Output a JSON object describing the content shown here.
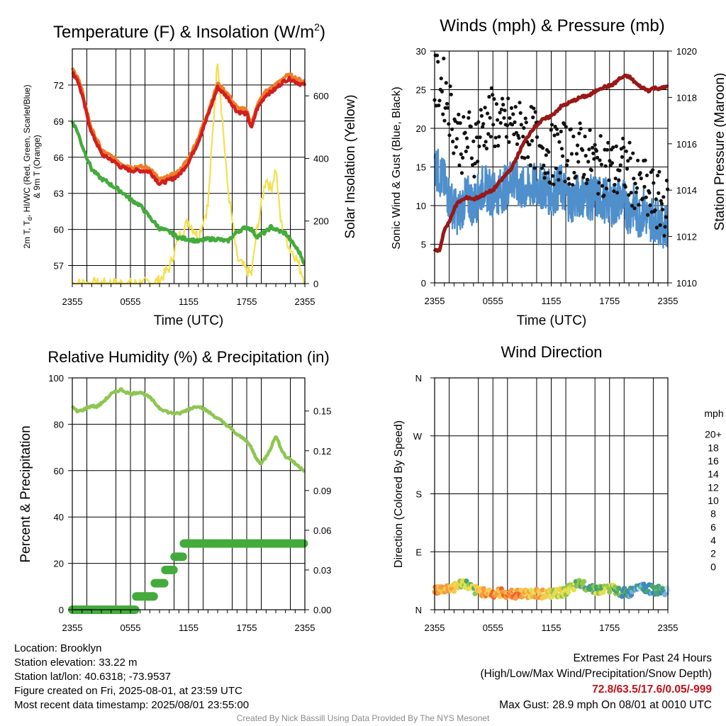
{
  "chart_data": [
    {
      "type": "line",
      "title": "Temperature (F) & Insolation (W/m²)",
      "title_main": "Temperature (F) & Insolation (W/m",
      "title_sup": "2",
      "title_end": ")",
      "xlabel": "Time (UTC)",
      "ylabel_line1": "2m T, T",
      "ylabel_sub": "d",
      "ylabel_line1_end": ", HI/WC (Red, Green, Scarlet/Blue)",
      "ylabel_line2": "& 9m T (Orange)",
      "y2label": "Solar Insolation (Yellow)",
      "x_ticks": [
        "2355",
        "0555",
        "1155",
        "1755",
        "2355"
      ],
      "ylim": [
        55.5,
        75
      ],
      "y_ticks": [
        57,
        60,
        63,
        66,
        69,
        72
      ],
      "y2lim": [
        0,
        750
      ],
      "y2_ticks": [
        0,
        200,
        400,
        600
      ],
      "x": [
        0,
        0.5,
        1,
        1.5,
        2,
        2.5,
        3,
        3.5,
        4,
        5,
        6,
        7,
        8,
        9,
        10,
        11,
        12,
        13,
        14,
        15,
        16,
        17,
        18,
        18.5,
        19,
        19.5,
        20,
        20.5,
        21,
        21.5,
        22,
        22.5,
        23,
        23.5,
        24
      ],
      "series": [
        {
          "name": "2m T",
          "color": "#d11f1f",
          "values": [
            73.0,
            72.5,
            71.2,
            69.5,
            68.0,
            67.2,
            66.3,
            66.0,
            65.8,
            65.2,
            64.9,
            64.9,
            64.8,
            63.8,
            64.1,
            64.5,
            65.6,
            67.3,
            69.5,
            71.8,
            71.0,
            69.8,
            69.6,
            68.4,
            69.9,
            70.6,
            71.2,
            71.4,
            71.7,
            72.1,
            72.4,
            72.5,
            72.3,
            72.1,
            72.0
          ]
        },
        {
          "name": "9m T",
          "color": "#f07c27",
          "values": [
            73.3,
            72.8,
            71.5,
            69.8,
            68.3,
            67.5,
            66.6,
            66.3,
            66.1,
            65.5,
            65.2,
            65.2,
            65.1,
            64.1,
            64.4,
            64.8,
            65.9,
            67.6,
            69.8,
            72.1,
            71.3,
            70.1,
            69.9,
            68.7,
            70.2,
            70.9,
            71.5,
            71.7,
            72.0,
            72.4,
            72.7,
            72.8,
            72.6,
            72.4,
            72.3
          ]
        },
        {
          "name": "Td",
          "color": "#43ab3b",
          "values": [
            69.0,
            68.2,
            67.0,
            66.0,
            65.0,
            64.6,
            64.2,
            64.0,
            63.7,
            63.2,
            62.5,
            62.0,
            61.0,
            60.1,
            59.8,
            59.3,
            59.2,
            59.0,
            59.2,
            59.2,
            59.0,
            59.8,
            60.2,
            60.0,
            59.4,
            59.6,
            59.8,
            60.2,
            60.0,
            59.8,
            59.7,
            59.1,
            58.6,
            58.0,
            57.1
          ]
        },
        {
          "name": "Solar Insolation",
          "axis": "y2",
          "color": "#f4e04d",
          "values": [
            0,
            0,
            0,
            0,
            0,
            0,
            0,
            0,
            0,
            0,
            0,
            0,
            0,
            10,
            50,
            150,
            200,
            150,
            250,
            720,
            320,
            80,
            40,
            30,
            160,
            250,
            340,
            300,
            370,
            200,
            150,
            110,
            90,
            50,
            10
          ]
        }
      ]
    },
    {
      "type": "scatter",
      "title": "Winds (mph) & Pressure (mb)",
      "xlabel": "Time (UTC)",
      "ylabel": "Sonic Wind & Gust (Blue, Black)",
      "y2label": "Station Pressure (Maroon)",
      "x_ticks": [
        "2355",
        "0555",
        "1155",
        "1755",
        "2355"
      ],
      "ylim": [
        0,
        30
      ],
      "y_ticks": [
        0,
        5,
        10,
        15,
        20,
        25,
        30
      ],
      "y2lim": [
        1010,
        1020
      ],
      "y2_ticks": [
        1010,
        1012,
        1014,
        1016,
        1018,
        1020
      ],
      "x": [
        0,
        0.5,
        1,
        1.5,
        2,
        2.5,
        3,
        3.5,
        4,
        5,
        6,
        7,
        8,
        9,
        10,
        11,
        12,
        13,
        14,
        15,
        16,
        17,
        18,
        18.5,
        19,
        19.5,
        20,
        20.5,
        21,
        21.5,
        22,
        22.5,
        23,
        23.5,
        24
      ],
      "series": [
        {
          "name": "Sonic Wind",
          "color": "#4f8fcb",
          "values": [
            15.5,
            14.0,
            13.0,
            11.0,
            9.5,
            9.0,
            10.5,
            11.0,
            10.0,
            12.5,
            11.5,
            12.0,
            13.5,
            12.0,
            12.5,
            12.5,
            11.5,
            12.5,
            10.5,
            11.5,
            11.0,
            11.0,
            10.5,
            10.0,
            11.0,
            10.5,
            9.0,
            10.0,
            8.5,
            9.5,
            8.0,
            8.5,
            8.0,
            7.5,
            7.5
          ]
        },
        {
          "name": "Gust",
          "color": "#111111",
          "values": [
            25.5,
            26.0,
            25.0,
            23.0,
            20.5,
            19.0,
            17.5,
            19.0,
            17.5,
            20.5,
            21.5,
            20.0,
            20.5,
            19.5,
            19.0,
            17.5,
            16.5,
            17.0,
            16.5,
            17.0,
            16.0,
            15.0,
            15.5,
            14.0,
            15.0,
            15.0,
            14.5,
            13.5,
            11.5,
            12.5,
            11.0,
            11.0,
            10.5,
            10.0,
            9.5
          ]
        },
        {
          "name": "Station Pressure",
          "axis": "y2",
          "color": "#991818",
          "values": [
            1011.4,
            1011.4,
            1012.3,
            1012.6,
            1013.2,
            1013.5,
            1013.6,
            1013.7,
            1013.6,
            1013.8,
            1014.0,
            1014.5,
            1015.0,
            1015.9,
            1016.6,
            1017.0,
            1017.2,
            1017.6,
            1017.8,
            1018.0,
            1018.1,
            1018.4,
            1018.5,
            1018.6,
            1018.8,
            1018.9,
            1018.9,
            1018.7,
            1018.5,
            1018.4,
            1018.3,
            1018.4,
            1018.4,
            1018.4,
            1018.5
          ]
        }
      ]
    },
    {
      "type": "line",
      "title": "Relative Humidity (%) & Precipitation (in)",
      "ylabel": "Percent & Precipitation",
      "x_ticks": [
        "2355",
        "0555",
        "1155",
        "1755",
        "2355"
      ],
      "ylim": [
        0,
        100
      ],
      "y_ticks": [
        0,
        20,
        40,
        60,
        80,
        100
      ],
      "y2lim": [
        0,
        0.175
      ],
      "y2_ticks": [
        "0.00",
        "0.03",
        "0.06",
        "0.09",
        "0.12",
        "0.15"
      ],
      "x": [
        0,
        0.5,
        1,
        1.5,
        2,
        2.5,
        3,
        3.5,
        4,
        5,
        6,
        7,
        8,
        9,
        10,
        11,
        12,
        13,
        14,
        15,
        16,
        17,
        18,
        18.5,
        19,
        19.5,
        20,
        20.5,
        21,
        21.5,
        22,
        22.5,
        23,
        23.5,
        24
      ],
      "series": [
        {
          "name": "Relative Humidity",
          "color": "#8dc650",
          "values": [
            87.5,
            85.5,
            86.0,
            87.0,
            88.0,
            87.5,
            89.0,
            91.0,
            93.0,
            95.0,
            93.0,
            94.0,
            91.5,
            87.0,
            85.0,
            84.5,
            86.5,
            88.0,
            85.5,
            82.5,
            79.5,
            75.5,
            73.0,
            69.5,
            65.0,
            63.0,
            66.0,
            70.0,
            75.0,
            70.0,
            66.0,
            65.0,
            63.0,
            61.5,
            60.0
          ]
        },
        {
          "name": "Precipitation",
          "axis": "y2",
          "color": "#43ab3b",
          "values": [
            0.0,
            0.0,
            0.0,
            0.0,
            0.0,
            0.0,
            0.0,
            0.0,
            0.0,
            0.0,
            0.0,
            0.01,
            0.01,
            0.02,
            0.03,
            0.04,
            0.05,
            0.05,
            0.05,
            0.05,
            0.05,
            0.05,
            0.05,
            0.05,
            0.05,
            0.05,
            0.05,
            0.05,
            0.05,
            0.05,
            0.05,
            0.05,
            0.05,
            0.05,
            0.05
          ]
        }
      ]
    },
    {
      "type": "scatter",
      "title": "Wind Direction",
      "ylabel": "Direction (Colored By Speed)",
      "x_ticks": [
        "2355",
        "0555",
        "1155",
        "1755",
        "2355"
      ],
      "y_ticks": [
        "N",
        "E",
        "S",
        "W",
        "N"
      ],
      "ylim": [
        0,
        360
      ],
      "legend_title": "mph",
      "legend_labels": [
        "20+",
        "18",
        "16",
        "14",
        "12",
        "10",
        "8",
        "6",
        "4",
        "2",
        "0"
      ],
      "legend_colors": [
        "#9b1b1b",
        "#c41d1d",
        "#dc3a26",
        "#f0632b",
        "#f79b43",
        "#f5cb4c",
        "#e3e052",
        "#93c54d",
        "#48a66a",
        "#3f87c0",
        "#7ab3df",
        "#bfe2f5"
      ],
      "x": [
        0,
        1,
        2,
        3,
        4,
        5,
        6,
        7,
        8,
        9,
        10,
        11,
        12,
        13,
        14,
        15,
        16,
        17,
        18,
        19,
        20,
        21,
        22,
        23,
        24
      ],
      "direction": [
        30,
        32,
        35,
        42,
        30,
        28,
        25,
        26,
        25,
        24,
        26,
        25,
        24,
        26,
        33,
        40,
        35,
        30,
        34,
        28,
        25,
        40,
        32,
        30,
        28
      ],
      "speed": [
        15,
        14,
        13,
        10,
        9,
        14,
        15,
        14,
        16,
        15,
        13,
        14,
        12,
        11,
        10,
        8,
        7,
        9,
        10,
        8,
        5,
        4,
        5,
        6,
        3
      ]
    }
  ],
  "station": {
    "location": "Location: Brooklyn",
    "elevation": "Station elevation: 33.22 m",
    "latlon": "Station lat/lon: 40.6318; -73.9537",
    "created": "Figure created on Fri, 2025-08-01, at 23:59 UTC",
    "recent": "Most recent data timestamp: 2025/08/01 23:55:00"
  },
  "extremes": {
    "title": "Extremes For Past 24 Hours",
    "subtitle": "(High/Low/Max Wind/Precipitation/Snow Depth)",
    "values": "72.8/63.5/17.6/0.05/-999",
    "gust": "Max Gust: 28.9 mph On 08/01 at 0010 UTC"
  },
  "credit": "Created By Nick Bassill Using Data Provided By The NYS Mesonet"
}
